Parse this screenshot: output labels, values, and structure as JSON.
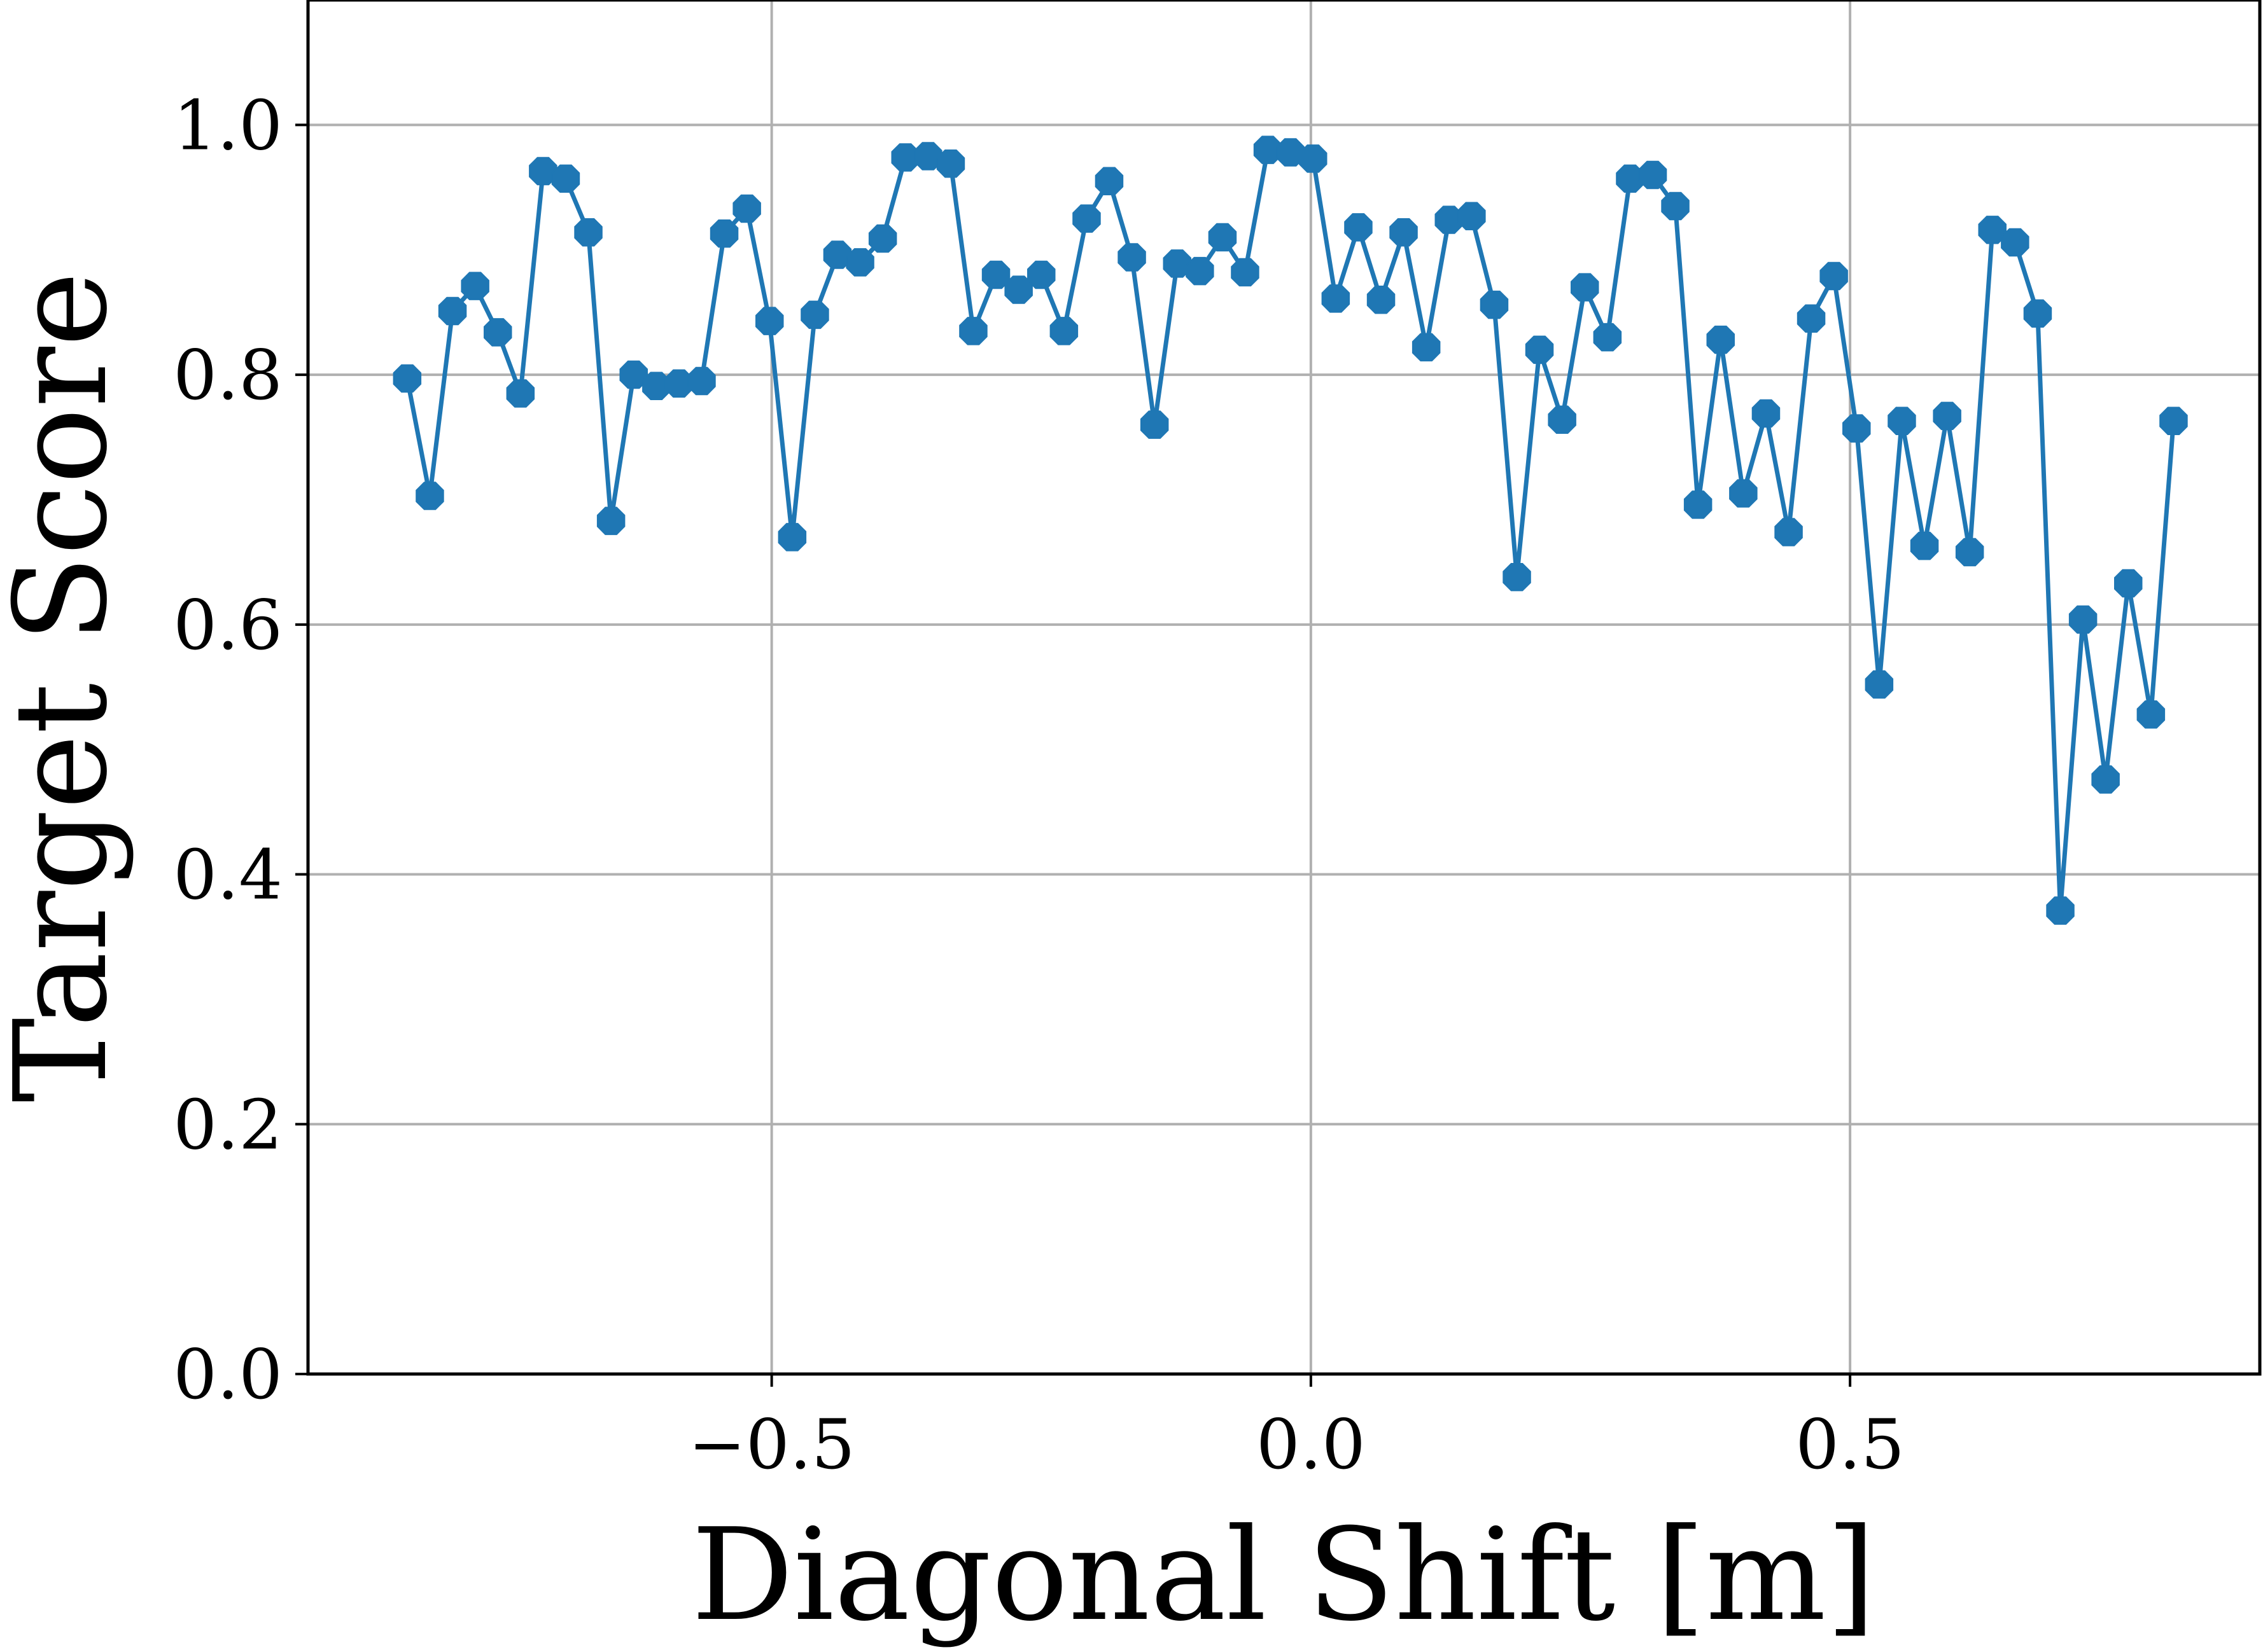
{
  "chart_data": {
    "type": "line",
    "title": "",
    "xlabel": "Diagonal Shift [m]",
    "ylabel": "Target Score",
    "xlim": [
      -0.93,
      0.88
    ],
    "ylim": [
      0.0,
      1.1
    ],
    "xticks": [
      -0.5,
      0.0,
      0.5
    ],
    "xtick_labels": [
      "−0.5",
      "0.0",
      "0.5"
    ],
    "yticks": [
      0.0,
      0.2,
      0.4,
      0.6,
      0.8,
      1.0
    ],
    "ytick_labels": [
      "0.0",
      "0.2",
      "0.4",
      "0.6",
      "0.8",
      "1.0"
    ],
    "grid": true,
    "legend": "none",
    "marker": "octagon",
    "color": "#1f77b4",
    "x": [
      -0.838,
      -0.817,
      -0.796,
      -0.775,
      -0.754,
      -0.733,
      -0.712,
      -0.691,
      -0.67,
      -0.649,
      -0.628,
      -0.607,
      -0.586,
      -0.565,
      -0.544,
      -0.523,
      -0.502,
      -0.481,
      -0.46,
      -0.439,
      -0.418,
      -0.397,
      -0.376,
      -0.355,
      -0.334,
      -0.313,
      -0.292,
      -0.271,
      -0.25,
      -0.229,
      -0.208,
      -0.187,
      -0.166,
      -0.145,
      -0.124,
      -0.103,
      -0.082,
      -0.061,
      -0.04,
      -0.019,
      0.002,
      0.023,
      0.044,
      0.065,
      0.086,
      0.107,
      0.128,
      0.149,
      0.17,
      0.191,
      0.212,
      0.233,
      0.254,
      0.275,
      0.296,
      0.317,
      0.338,
      0.359,
      0.38,
      0.401,
      0.422,
      0.443,
      0.464,
      0.485,
      0.506,
      0.527,
      0.548,
      0.569,
      0.59,
      0.611,
      0.632,
      0.653,
      0.674,
      0.695,
      0.716,
      0.737,
      0.758,
      0.779,
      0.8
    ],
    "series": [
      {
        "name": "",
        "values": [
          0.797,
          0.703,
          0.851,
          0.871,
          0.834,
          0.785,
          0.963,
          0.957,
          0.914,
          0.683,
          0.8,
          0.791,
          0.793,
          0.795,
          0.913,
          0.933,
          0.843,
          0.67,
          0.848,
          0.896,
          0.89,
          0.909,
          0.974,
          0.975,
          0.969,
          0.835,
          0.88,
          0.868,
          0.88,
          0.835,
          0.925,
          0.955,
          0.894,
          0.76,
          0.889,
          0.883,
          0.91,
          0.882,
          0.98,
          0.978,
          0.973,
          0.861,
          0.918,
          0.86,
          0.914,
          0.822,
          0.924,
          0.927,
          0.856,
          0.638,
          0.82,
          0.764,
          0.87,
          0.83,
          0.957,
          0.96,
          0.935,
          0.696,
          0.828,
          0.705,
          0.769,
          0.674,
          0.845,
          0.879,
          0.757,
          0.552,
          0.763,
          0.663,
          0.767,
          0.658,
          0.916,
          0.906,
          0.849,
          0.371,
          0.604,
          0.476,
          0.633,
          0.528,
          0.763
        ]
      }
    ]
  }
}
